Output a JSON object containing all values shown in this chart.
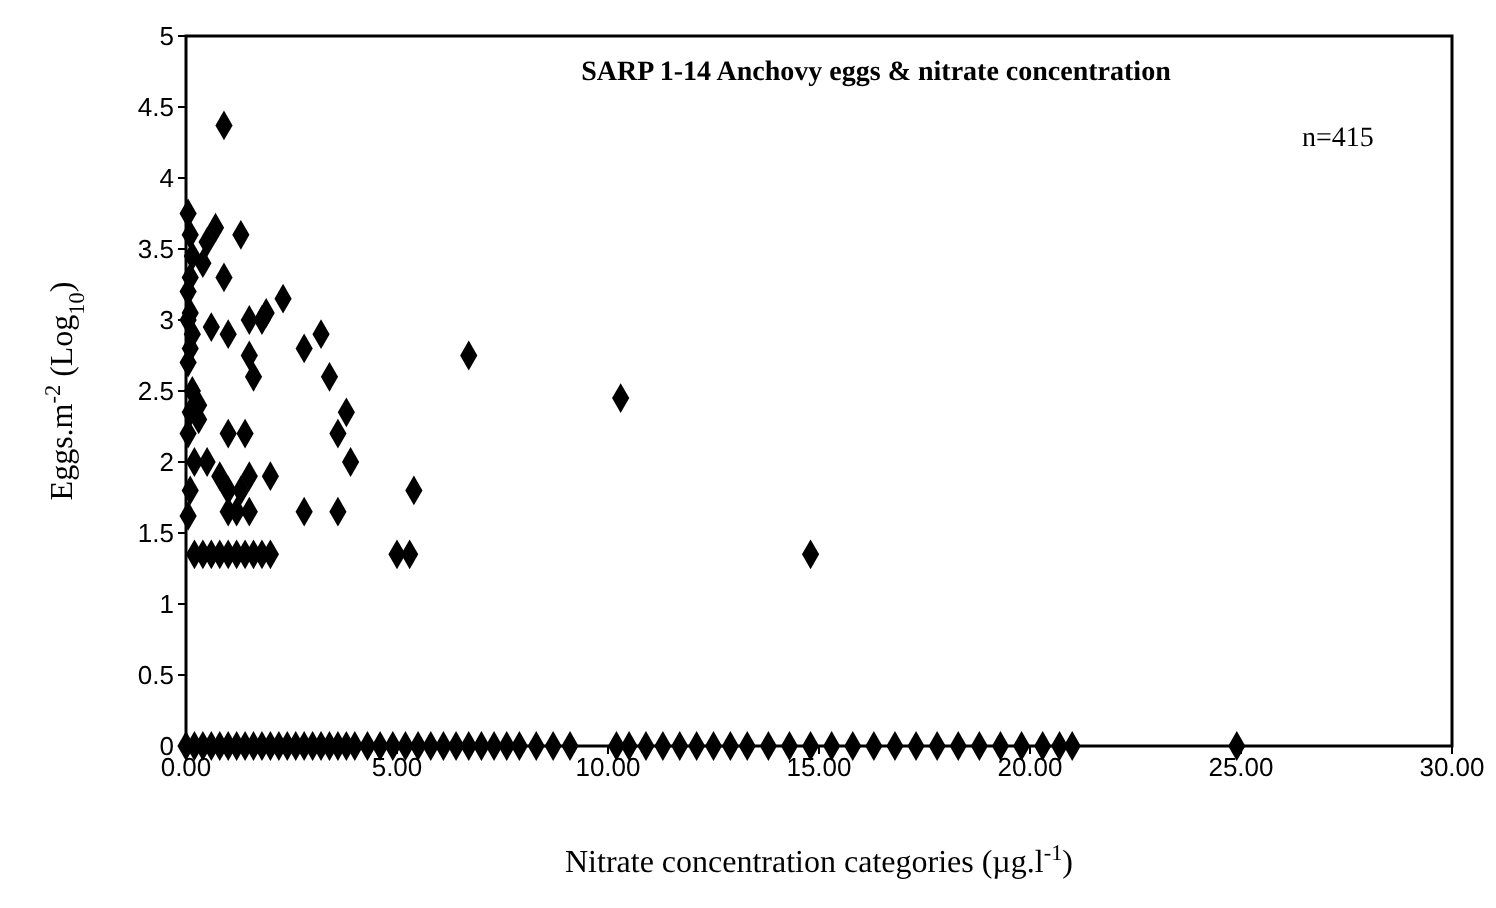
{
  "chart_data": {
    "type": "scatter",
    "title": "SARP 1-14 Anchovy eggs & nitrate concentration",
    "xlabel": "Nitrate concentration categories (µg.l$^{-1}$)",
    "ylabel": "Eggs.m$^{-2}$ (Log$_{10}$)",
    "annotations": [
      "n=415"
    ],
    "series": [
      {
        "color": "#000000",
        "x": [
          0.9,
          0.05,
          0.1,
          0.15,
          0.1,
          0.05,
          0.1,
          0.05,
          0.15,
          0.1,
          0.05,
          0.15,
          0.1,
          0.3,
          0.05,
          0.2,
          0.1,
          0.05,
          0.5,
          0.7,
          0.4,
          1.3,
          0.9,
          1.0,
          0.6,
          1.5,
          1.8,
          1.9,
          2.3,
          1.5,
          1.6,
          1.4,
          1.0,
          2.8,
          3.2,
          3.4,
          2.0,
          1.5,
          3.6,
          3.8,
          3.9,
          3.6,
          2.8,
          1.0,
          1.3,
          1.5,
          1.0,
          0.3,
          0.5,
          0.8,
          1.2,
          5.0,
          5.3,
          5.4,
          6.7,
          10.3,
          14.8,
          0.2,
          0.4,
          0.6,
          0.8,
          1.0,
          1.2,
          1.4,
          1.6,
          1.8,
          2.0,
          0.0,
          0.2,
          0.4,
          0.6,
          0.8,
          1.0,
          1.2,
          1.4,
          1.6,
          1.8,
          2.0,
          2.2,
          2.4,
          2.6,
          2.8,
          3.0,
          3.2,
          3.4,
          3.6,
          3.8,
          4.0,
          4.3,
          4.6,
          4.9,
          5.2,
          5.5,
          5.8,
          6.1,
          6.4,
          6.7,
          7.0,
          7.3,
          7.6,
          7.9,
          8.3,
          8.7,
          9.1,
          10.2,
          10.5,
          10.9,
          11.3,
          11.7,
          12.1,
          12.5,
          12.9,
          13.3,
          13.8,
          14.3,
          14.8,
          15.3,
          15.8,
          16.3,
          16.8,
          17.3,
          17.8,
          18.3,
          18.8,
          19.3,
          19.8,
          20.3,
          20.7,
          21.0,
          24.9
        ],
        "values": [
          4.37,
          3.75,
          3.6,
          3.45,
          3.3,
          3.2,
          3.05,
          3.0,
          2.9,
          2.8,
          2.7,
          2.5,
          2.35,
          2.3,
          2.2,
          2.0,
          1.8,
          1.62,
          3.55,
          3.65,
          3.4,
          3.6,
          3.3,
          2.9,
          2.95,
          3.0,
          3.0,
          3.05,
          3.15,
          2.75,
          2.6,
          2.2,
          2.2,
          2.8,
          2.9,
          2.6,
          1.9,
          1.9,
          2.2,
          2.35,
          2.0,
          1.65,
          1.65,
          1.8,
          1.8,
          1.65,
          1.65,
          2.4,
          2.0,
          1.9,
          1.65,
          1.35,
          1.35,
          1.8,
          2.75,
          2.45,
          1.35,
          1.35,
          1.35,
          1.35,
          1.35,
          1.35,
          1.35,
          1.35,
          1.35,
          1.35,
          1.35,
          0,
          0,
          0,
          0,
          0,
          0,
          0,
          0,
          0,
          0,
          0,
          0,
          0,
          0,
          0,
          0,
          0,
          0,
          0,
          0,
          0,
          0,
          0,
          0,
          0,
          0,
          0,
          0,
          0,
          0,
          0,
          0,
          0,
          0,
          0,
          0,
          0,
          0,
          0,
          0,
          0,
          0,
          0,
          0,
          0,
          0,
          0,
          0,
          0,
          0,
          0,
          0,
          0,
          0,
          0,
          0,
          0,
          0,
          0,
          0,
          0,
          0,
          0
        ]
      }
    ],
    "marker": "diamond",
    "xlim": [
      0,
      30
    ],
    "xticks": [
      {
        "value": 0,
        "label": "0.00"
      },
      {
        "value": 5,
        "label": "5.00"
      },
      {
        "value": 10,
        "label": "10.00"
      },
      {
        "value": 15,
        "label": "15.00"
      },
      {
        "value": 20,
        "label": "20.00"
      },
      {
        "value": 25,
        "label": "25.00"
      },
      {
        "value": 30,
        "label": "30.00"
      }
    ],
    "ylim": [
      0,
      5
    ],
    "yticks": [
      0,
      0.5,
      1,
      1.5,
      2,
      2.5,
      3,
      3.5,
      4,
      4.5,
      5
    ],
    "grid": false,
    "legend": false
  }
}
